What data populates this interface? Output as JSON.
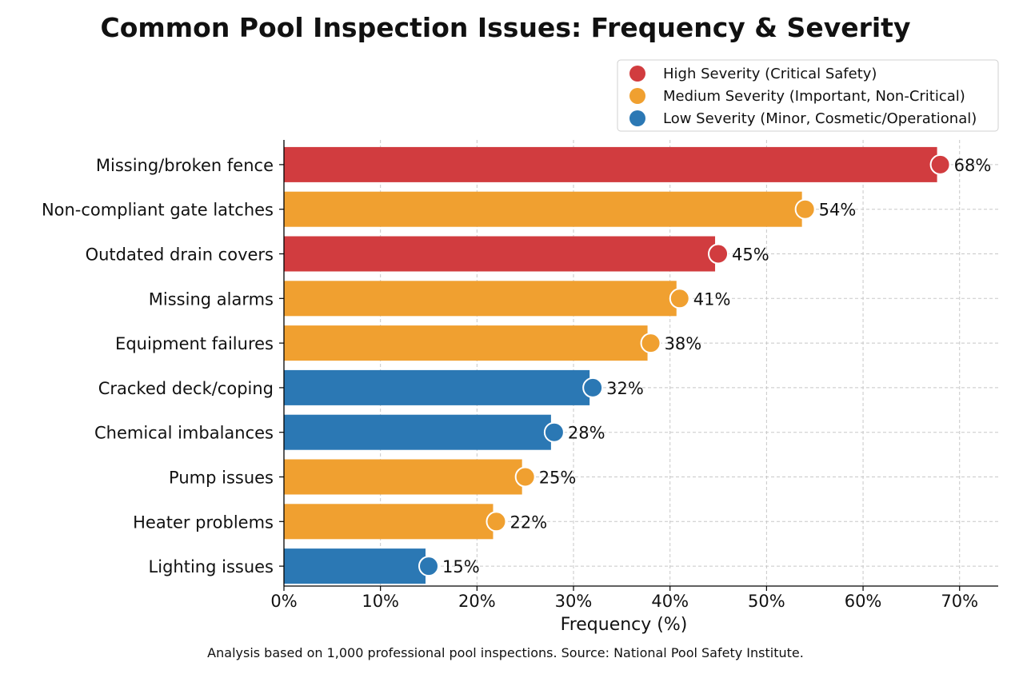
{
  "chart_data": {
    "type": "bar",
    "orientation": "horizontal",
    "title": "Common Pool Inspection Issues: Frequency & Severity",
    "xlabel": "Frequency (%)",
    "ylabel": "",
    "xlim": [
      0,
      74
    ],
    "xticks": [
      0,
      10,
      20,
      30,
      40,
      50,
      60,
      70
    ],
    "xtick_labels": [
      "0%",
      "10%",
      "20%",
      "30%",
      "40%",
      "50%",
      "60%",
      "70%"
    ],
    "grid": true,
    "legend_position": "top-right",
    "categories": [
      "Missing/broken fence",
      "Non-compliant gate latches",
      "Outdated drain covers",
      "Missing alarms",
      "Equipment failures",
      "Cracked deck/coping",
      "Chemical imbalances",
      "Pump issues",
      "Heater problems",
      "Lighting issues"
    ],
    "values": [
      68,
      54,
      45,
      41,
      38,
      32,
      28,
      25,
      22,
      15
    ],
    "value_labels": [
      "68%",
      "54%",
      "45%",
      "41%",
      "38%",
      "32%",
      "28%",
      "25%",
      "22%",
      "15%"
    ],
    "severity": [
      "high",
      "medium",
      "high",
      "medium",
      "medium",
      "low",
      "low",
      "medium",
      "medium",
      "low"
    ],
    "legend": [
      {
        "key": "high",
        "label": "High Severity (Critical Safety)",
        "color": "#d13c3f"
      },
      {
        "key": "medium",
        "label": "Medium Severity (Important, Non-Critical)",
        "color": "#f0a030"
      },
      {
        "key": "low",
        "label": "Low Severity (Minor, Cosmetic/Operational)",
        "color": "#2b78b4"
      }
    ],
    "footnote": "Analysis based on 1,000 professional pool inspections. Source: National Pool Safety Institute."
  }
}
